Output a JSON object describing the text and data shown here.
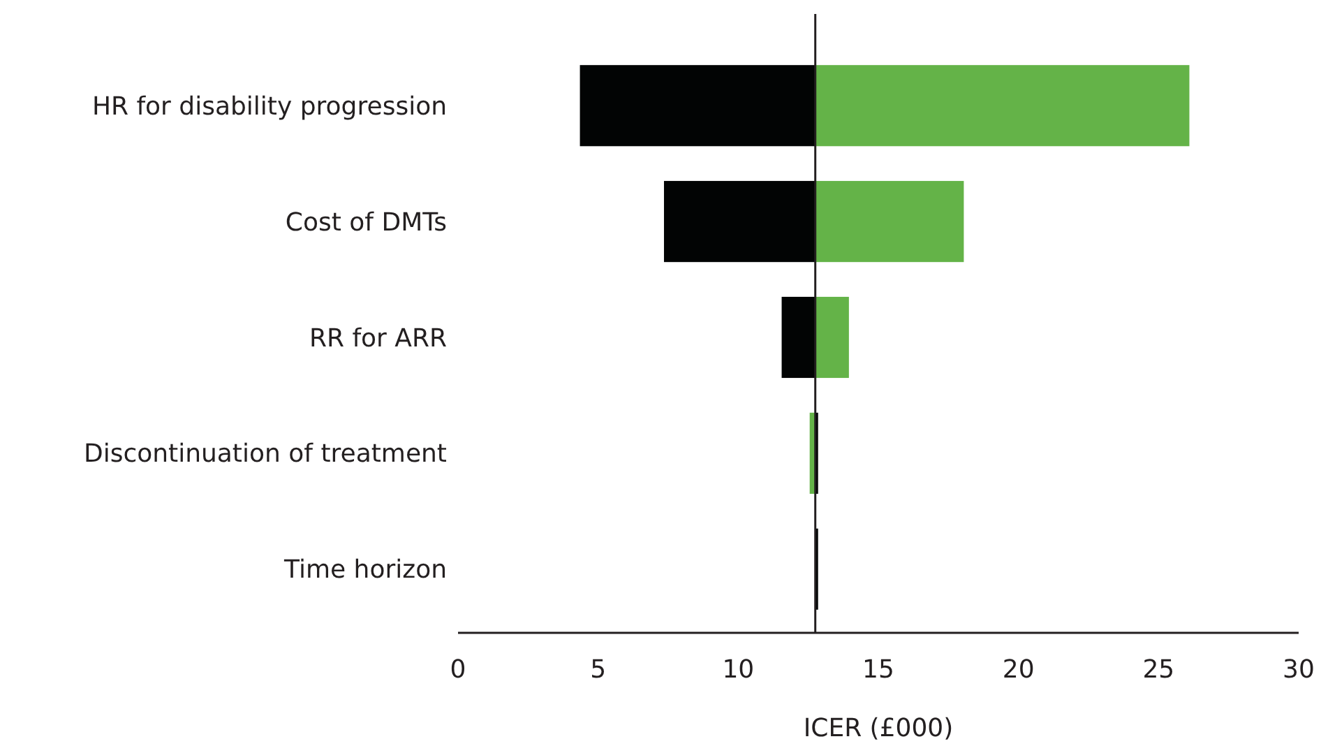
{
  "chart_data": {
    "type": "bar",
    "orientation": "horizontal",
    "xlabel": "ICER (£000)",
    "categories": [
      "HR for disability progression",
      "Cost of DMTs",
      "RR for ARR",
      "Discontinuation of treatment",
      "Time horizon"
    ],
    "series": [
      {
        "color": "#020404",
        "base": [
          4.35,
          7.35,
          11.55,
          12.75,
          12.75
        ],
        "values": [
          8.4,
          5.4,
          1.2,
          0.1,
          0.1
        ]
      },
      {
        "color": "#64b348",
        "base": [
          12.75,
          12.75,
          12.75,
          12.55,
          null
        ],
        "values": [
          13.35,
          5.3,
          1.2,
          0.2,
          null
        ]
      }
    ],
    "xlim": [
      0,
      30
    ],
    "xticks": [
      0,
      5,
      10,
      15,
      20,
      25,
      30
    ],
    "ref_lines": [
      {
        "axis": "x",
        "value": 12.75,
        "color": "#231f20"
      }
    ],
    "grid": false
  }
}
